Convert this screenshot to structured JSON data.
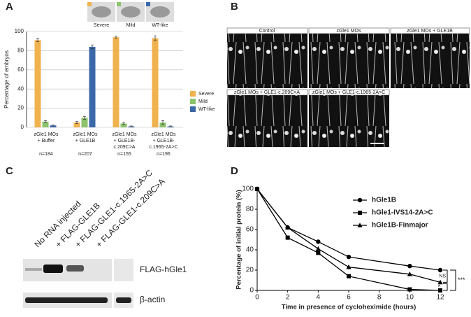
{
  "panels": [
    "A",
    "B",
    "C",
    "D"
  ],
  "phenotype_labels": [
    "Severe",
    "Mild",
    "WT-like"
  ],
  "chart_data": [
    {
      "type": "bar",
      "ylabel": "Percentage of embryos",
      "categories": [
        [
          "zGle1 MOs",
          "+ Buffer"
        ],
        [
          "zGle1 MOs",
          "+ GLE1B"
        ],
        [
          "zGle1 MOs",
          "+ GLE1B-",
          "c.209C>A"
        ],
        [
          "zGle1 MOs",
          "+ GLE1B-",
          "c.1965-2A>C"
        ]
      ],
      "n_labels": [
        "n=184",
        "n=207",
        "n=155",
        "n=196"
      ],
      "series": [
        {
          "name": "Severe",
          "color": "#f0b24e",
          "values": [
            91,
            5,
            94,
            93
          ],
          "errors": [
            1.5,
            1,
            1,
            2.5
          ]
        },
        {
          "name": "Mild",
          "color": "#8cc36b",
          "values": [
            6,
            10,
            4,
            5
          ],
          "errors": [
            1,
            1.5,
            1,
            2
          ]
        },
        {
          "name": "WT-like",
          "color": "#3a68a8",
          "values": [
            2,
            84,
            1,
            1
          ],
          "errors": [
            0.5,
            2,
            0.5,
            0.5
          ]
        }
      ],
      "ylim": [
        0,
        100
      ],
      "yticks": [
        0,
        20,
        40,
        60,
        80,
        100
      ],
      "grid": true
    },
    {
      "type": "line",
      "xlabel": "Time in presence of cycloheximide (hours)",
      "ylabel": "Percentage of initial protein (%)",
      "x": [
        0,
        2,
        4,
        6,
        10,
        12
      ],
      "series": [
        {
          "name": "hGle1B",
          "marker": "circle",
          "color": "#000000",
          "values": [
            100,
            62,
            48,
            33,
            24,
            20
          ]
        },
        {
          "name": "hGle1-IVS14-2A>C",
          "marker": "square",
          "color": "#000000",
          "values": [
            100,
            52,
            37,
            14,
            1,
            0
          ]
        },
        {
          "name": "hGle1B-Finmajor",
          "marker": "triangle",
          "color": "#000000",
          "values": [
            100,
            62,
            41,
            23,
            16,
            8
          ]
        }
      ],
      "xlim": [
        0,
        12
      ],
      "xticks": [
        0,
        2,
        4,
        6,
        8,
        10,
        12
      ],
      "ylim": [
        0,
        100
      ],
      "yticks": [
        0,
        20,
        40,
        60,
        80,
        100
      ],
      "annotations": [
        "NS",
        "*",
        "***"
      ]
    }
  ],
  "images": [
    "Control",
    "zGle1 MOs",
    "zGle1 MOs + GLE1B",
    "zGle1 MOs + GLE1-c.209C>A",
    "zGle1 MOs + GLE1-c.1965-2A>C"
  ],
  "blot": {
    "lanes": [
      "No RNA injected",
      "+ FLAG-GLE1B",
      "+ FLAG-GLE1-c.1965-2A>C",
      "+ FLAG-GLE1-c.209C>A"
    ],
    "bands": [
      "FLAG-hGle1",
      "β-actin"
    ]
  }
}
